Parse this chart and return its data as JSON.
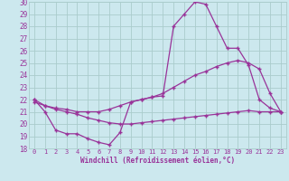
{
  "xlabel": "Windchill (Refroidissement éolien,°C)",
  "bg_color": "#cce8ee",
  "grid_color": "#aacccc",
  "line_color": "#993399",
  "xlim": [
    -0.5,
    23.5
  ],
  "ylim": [
    18,
    30
  ],
  "yticks": [
    18,
    19,
    20,
    21,
    22,
    23,
    24,
    25,
    26,
    27,
    28,
    29,
    30
  ],
  "xticks": [
    0,
    1,
    2,
    3,
    4,
    5,
    6,
    7,
    8,
    9,
    10,
    11,
    12,
    13,
    14,
    15,
    16,
    17,
    18,
    19,
    20,
    21,
    22,
    23
  ],
  "hours": [
    0,
    1,
    2,
    3,
    4,
    5,
    6,
    7,
    8,
    9,
    10,
    11,
    12,
    13,
    14,
    15,
    16,
    17,
    18,
    19,
    20,
    21,
    22,
    23
  ],
  "line1": [
    22.0,
    21.0,
    19.5,
    19.2,
    19.2,
    18.8,
    18.5,
    18.3,
    19.3,
    21.8,
    22.0,
    22.2,
    22.3,
    28.0,
    29.0,
    30.0,
    29.8,
    28.0,
    26.2,
    26.2,
    24.8,
    22.0,
    21.3,
    21.0
  ],
  "line2": [
    22.0,
    21.5,
    21.3,
    21.2,
    21.0,
    21.0,
    21.0,
    21.2,
    21.5,
    21.8,
    22.0,
    22.2,
    22.5,
    23.0,
    23.5,
    24.0,
    24.3,
    24.7,
    25.0,
    25.2,
    25.0,
    24.5,
    22.5,
    21.0
  ],
  "line3": [
    21.8,
    21.5,
    21.2,
    21.0,
    20.8,
    20.5,
    20.3,
    20.1,
    20.0,
    20.0,
    20.1,
    20.2,
    20.3,
    20.4,
    20.5,
    20.6,
    20.7,
    20.8,
    20.9,
    21.0,
    21.1,
    21.0,
    21.0,
    21.0
  ]
}
